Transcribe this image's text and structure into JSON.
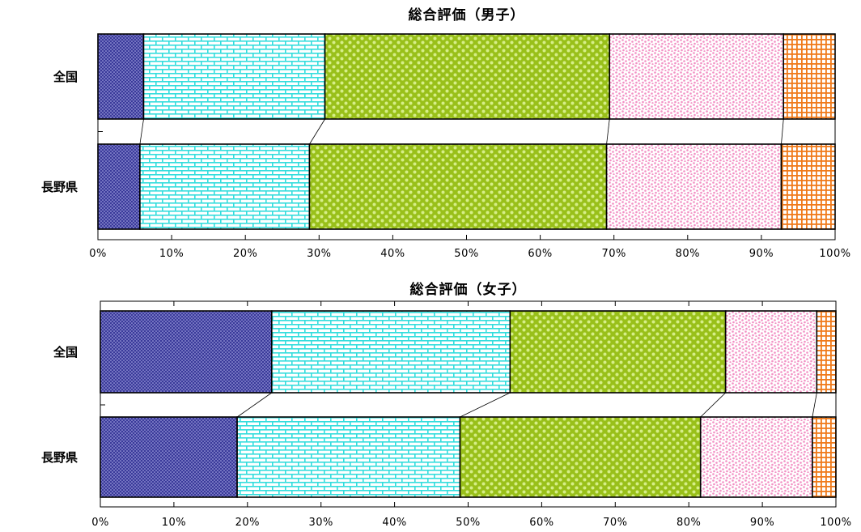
{
  "chart_data": [
    {
      "type": "bar",
      "orientation": "horizontal",
      "stacked": "percent",
      "title": "総合評価（男子）",
      "categories": [
        "全国",
        "長野県"
      ],
      "series": [
        {
          "color": "#3a3a9a",
          "values": [
            6.2,
            5.7
          ]
        },
        {
          "color": "#33dddd",
          "values": [
            24.6,
            23.0
          ]
        },
        {
          "color": "#99c01a",
          "values": [
            38.6,
            40.3
          ]
        },
        {
          "color": "#f7a3cf",
          "values": [
            23.6,
            23.7
          ]
        },
        {
          "color": "#f07a1a",
          "values": [
            7.0,
            7.3
          ]
        }
      ],
      "xlim": [
        0,
        100
      ],
      "xticks": [
        "0%",
        "10%",
        "20%",
        "30%",
        "40%",
        "50%",
        "60%",
        "70%",
        "80%",
        "90%",
        "100%"
      ],
      "legend": "none"
    },
    {
      "type": "bar",
      "orientation": "horizontal",
      "stacked": "percent",
      "title": "総合評価（女子）",
      "categories": [
        "全国",
        "長野県"
      ],
      "series": [
        {
          "color": "#3a3a9a",
          "values": [
            23.3,
            18.6
          ]
        },
        {
          "color": "#33dddd",
          "values": [
            32.4,
            30.3
          ]
        },
        {
          "color": "#99c01a",
          "values": [
            29.3,
            32.7
          ]
        },
        {
          "color": "#f7a3cf",
          "values": [
            12.4,
            15.2
          ]
        },
        {
          "color": "#f07a1a",
          "values": [
            2.6,
            3.2
          ]
        }
      ],
      "xlim": [
        0,
        100
      ],
      "xticks": [
        "0%",
        "10%",
        "20%",
        "30%",
        "40%",
        "50%",
        "60%",
        "70%",
        "80%",
        "90%",
        "100%"
      ],
      "legend": "none"
    }
  ]
}
